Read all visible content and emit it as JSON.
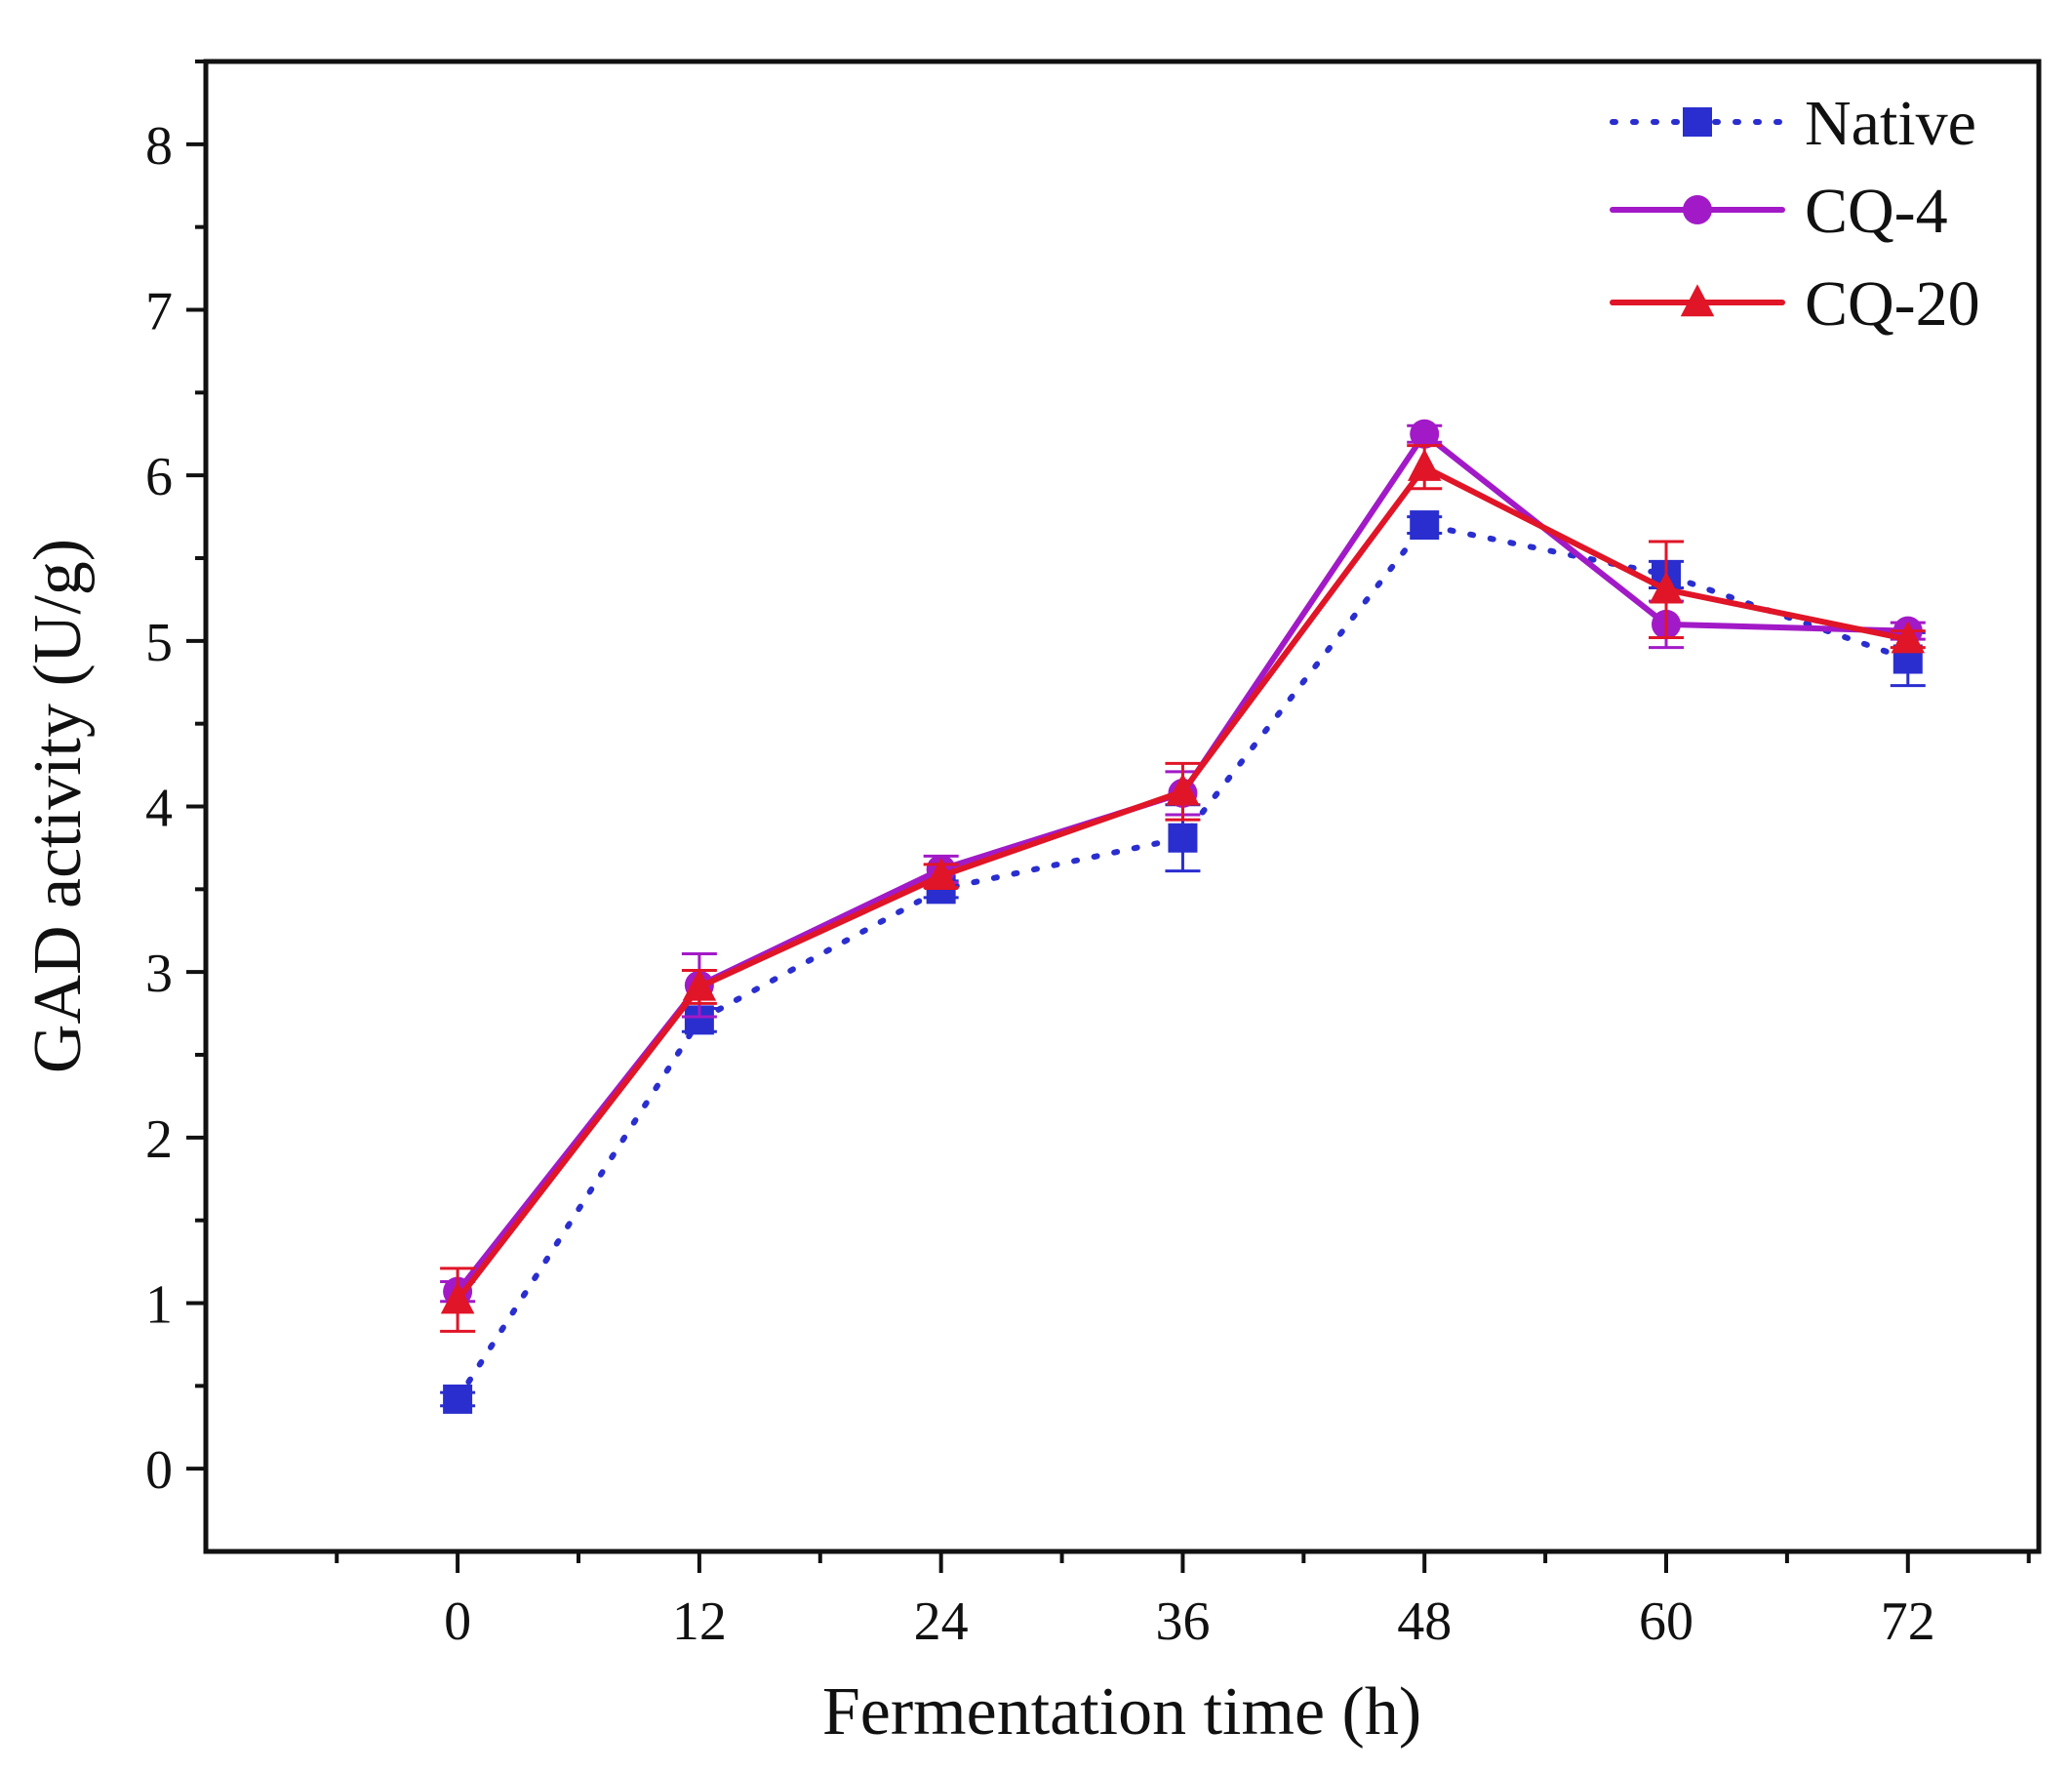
{
  "chart_data": {
    "type": "line",
    "title": "",
    "xlabel": "Fermentation time (h)",
    "ylabel": "GAD activity (U/g)",
    "xlim": [
      -12.5,
      78.5
    ],
    "ylim": [
      -0.5,
      8.5
    ],
    "x_ticks": [
      0,
      12,
      24,
      36,
      48,
      60,
      72
    ],
    "x_tick_labels": [
      "0",
      "12",
      "24",
      "36",
      "48",
      "60",
      "72"
    ],
    "y_ticks": [
      0,
      1,
      2,
      3,
      4,
      5,
      6,
      7,
      8
    ],
    "y_tick_labels": [
      "0",
      "1",
      "2",
      "3",
      "4",
      "5",
      "6",
      "7",
      "8"
    ],
    "grid": false,
    "legend": {
      "placement": "top-right"
    },
    "series": [
      {
        "name": "Native",
        "color": "#2a2ecf",
        "line_style": "dotted",
        "marker": "square",
        "x": [
          0,
          12,
          24,
          36,
          48,
          60,
          72
        ],
        "y": [
          0.42,
          2.71,
          3.5,
          3.81,
          5.7,
          5.4,
          4.89
        ],
        "error": [
          0.04,
          0.07,
          0.05,
          0.2,
          0.05,
          0.08,
          0.16
        ]
      },
      {
        "name": "CQ-4",
        "color": "#a21ac7",
        "line_style": "solid",
        "marker": "circle",
        "x": [
          0,
          12,
          24,
          36,
          48,
          60,
          72
        ],
        "y": [
          1.07,
          2.92,
          3.62,
          4.08,
          6.25,
          5.1,
          5.06
        ],
        "error": [
          0.06,
          0.19,
          0.08,
          0.13,
          0.05,
          0.14,
          0.05
        ]
      },
      {
        "name": "CQ-20",
        "color": "#e01527",
        "line_style": "solid",
        "marker": "triangle",
        "x": [
          0,
          12,
          24,
          36,
          48,
          60,
          72
        ],
        "y": [
          1.02,
          2.91,
          3.58,
          4.09,
          6.05,
          5.31,
          5.01
        ],
        "error": [
          0.19,
          0.1,
          0.07,
          0.17,
          0.13,
          0.29,
          0.05
        ]
      }
    ]
  }
}
